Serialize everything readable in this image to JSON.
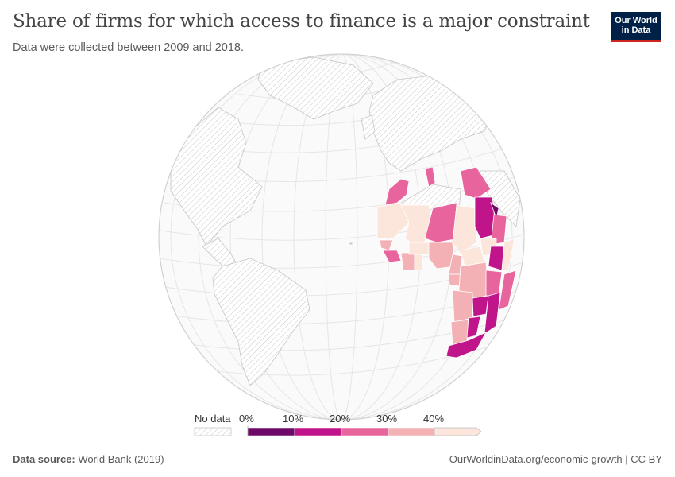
{
  "header": {
    "title": "Share of firms for which access to finance is a major constraint",
    "subtitle": "Data were collected between 2009 and 2018."
  },
  "logo": {
    "line1": "Our World",
    "line2": "in Data",
    "bg_color": "#002147",
    "accent_color": "#ce261e"
  },
  "legend": {
    "no_data_label": "No data",
    "ticks": [
      "0%",
      "10%",
      "20%",
      "30%",
      "40%"
    ],
    "bins": [
      {
        "range": "0–10%",
        "color": "#6d0a68"
      },
      {
        "range": "10–20%",
        "color": "#c0148a"
      },
      {
        "range": "20–30%",
        "color": "#e8649c"
      },
      {
        "range": "30–40%",
        "color": "#f4b1b5"
      },
      {
        "range": ">40%",
        "color": "#fce6dc"
      }
    ]
  },
  "map": {
    "projection": "orthographic",
    "region_shown": "Africa",
    "no_data_pattern": "hatched"
  },
  "footer": {
    "source_label": "Data source:",
    "source_value": "World Bank (2019)",
    "link": "OurWorldinData.org/economic-growth | CC BY"
  }
}
